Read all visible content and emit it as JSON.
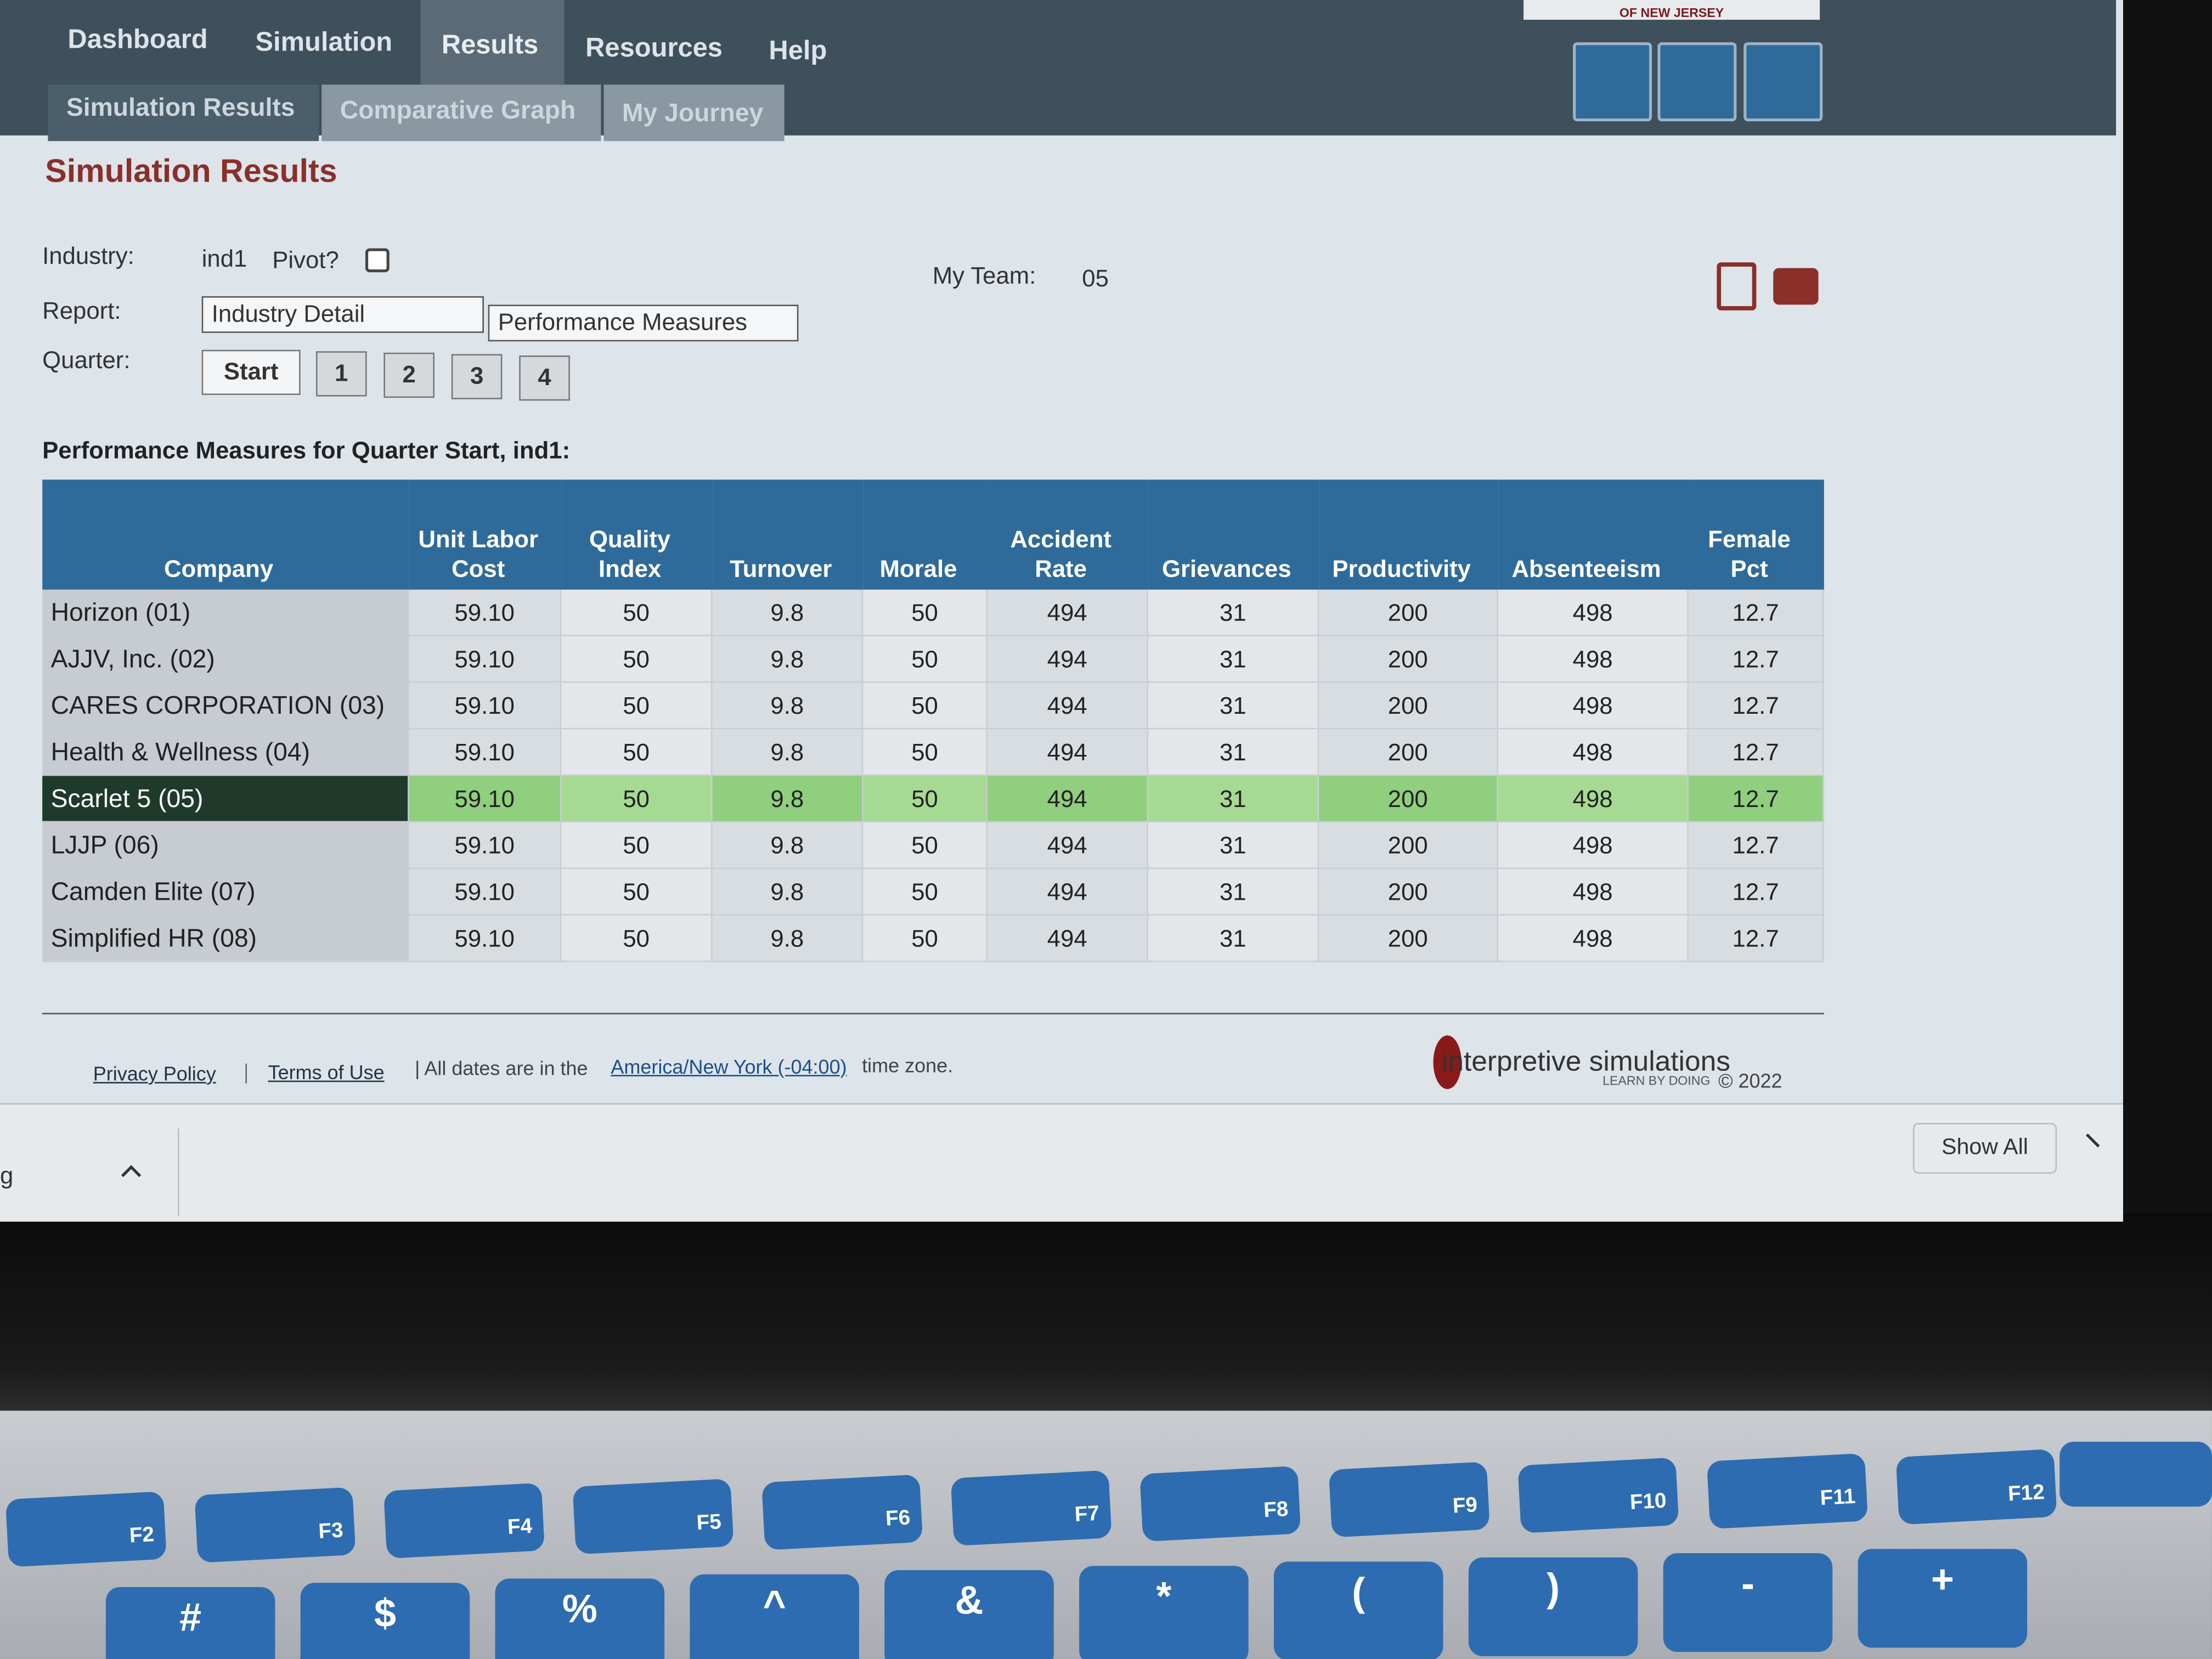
{
  "header": {
    "university": "OF NEW JERSEY",
    "nav": [
      "Dashboard",
      "Simulation",
      "Results",
      "Resources",
      "Help"
    ],
    "active_nav": 2,
    "subnav": [
      "Simulation Results",
      "Comparative Graph",
      "My Journey"
    ]
  },
  "page": {
    "title": "Simulation Results",
    "industry_label": "Industry:",
    "industry": "ind1",
    "pivot_label": "Pivot?",
    "report_label": "Report:",
    "report_options": [
      "Industry Detail",
      "Performance Measures"
    ],
    "quarter_label": "Quarter:",
    "quarters": [
      "Start",
      "1",
      "2",
      "3",
      "4"
    ],
    "team_label": "My Team:",
    "team": "05"
  },
  "table": {
    "caption": "Performance Measures for Quarter Start, ind1:",
    "columns": [
      "Company",
      "Unit Labor Cost",
      "Quality Index",
      "Turnover",
      "Morale",
      "Accident Rate",
      "Grievances",
      "Productivity",
      "Absenteeism",
      "Female Pct"
    ],
    "highlight_row": 4,
    "rows": [
      [
        "Horizon (01)",
        "59.10",
        "50",
        "9.8",
        "50",
        "494",
        "31",
        "200",
        "498",
        "12.7"
      ],
      [
        "AJJV, Inc. (02)",
        "59.10",
        "50",
        "9.8",
        "50",
        "494",
        "31",
        "200",
        "498",
        "12.7"
      ],
      [
        "CARES CORPORATION (03)",
        "59.10",
        "50",
        "9.8",
        "50",
        "494",
        "31",
        "200",
        "498",
        "12.7"
      ],
      [
        "Health & Wellness (04)",
        "59.10",
        "50",
        "9.8",
        "50",
        "494",
        "31",
        "200",
        "498",
        "12.7"
      ],
      [
        "Scarlet 5 (05)",
        "59.10",
        "50",
        "9.8",
        "50",
        "494",
        "31",
        "200",
        "498",
        "12.7"
      ],
      [
        "LJJP (06)",
        "59.10",
        "50",
        "9.8",
        "50",
        "494",
        "31",
        "200",
        "498",
        "12.7"
      ],
      [
        "Camden Elite (07)",
        "59.10",
        "50",
        "9.8",
        "50",
        "494",
        "31",
        "200",
        "498",
        "12.7"
      ],
      [
        "Simplified HR (08)",
        "59.10",
        "50",
        "9.8",
        "50",
        "494",
        "31",
        "200",
        "498",
        "12.7"
      ]
    ]
  },
  "footer": {
    "links": [
      "Privacy Policy",
      "Terms of Use"
    ],
    "timezone_prefix": "| All dates are in the",
    "timezone_link": "America/New York (-04:00)",
    "timezone_suffix": "time zone.",
    "logo": "interpretive simulations",
    "tagline": "LEARN BY DOING",
    "copyright": "© 2022"
  },
  "download_bar": {
    "item": "g",
    "show_all": "Show All"
  },
  "keyboard": {
    "function_keys": [
      "F2",
      "F3",
      "F4",
      "F5",
      "F6",
      "F7",
      "F8",
      "F9",
      "F10",
      "F11",
      "F12"
    ],
    "number_row": [
      "#",
      "$",
      "%",
      "^",
      "&",
      "*",
      "(",
      ")",
      "-",
      "+"
    ]
  }
}
